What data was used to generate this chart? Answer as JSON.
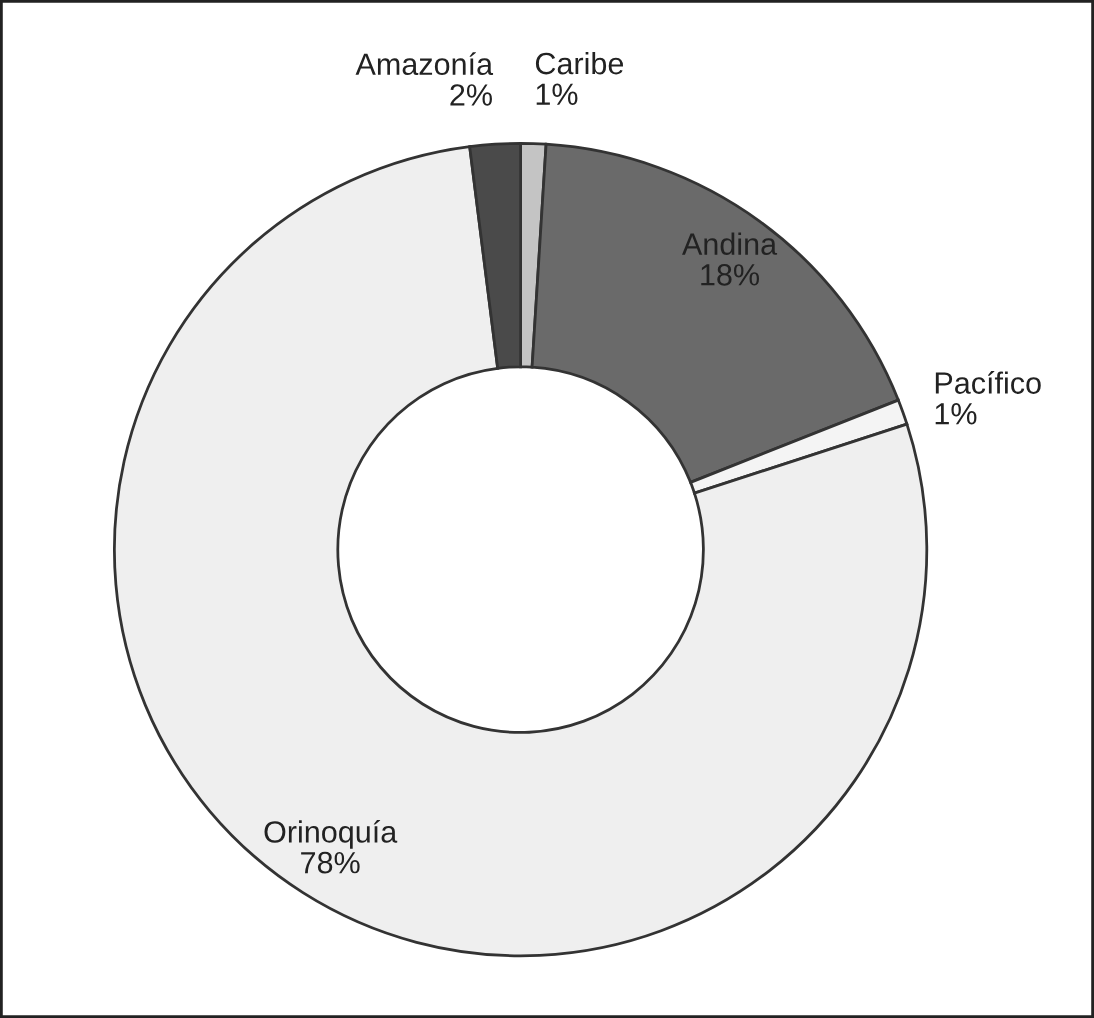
{
  "chart_data": {
    "type": "donut",
    "categories": [
      "Caribe",
      "Andina",
      "Pacífico",
      "Orinoquía",
      "Amazonía"
    ],
    "values": [
      1,
      18,
      1,
      78,
      2
    ],
    "colors": [
      "#c4c4c4",
      "#6a6a6a",
      "#f4f4f4",
      "#efefef",
      "#4a4a4a"
    ],
    "value_labels": [
      "1%",
      "18%",
      "1%",
      "78%",
      "2%"
    ],
    "legend": false
  }
}
